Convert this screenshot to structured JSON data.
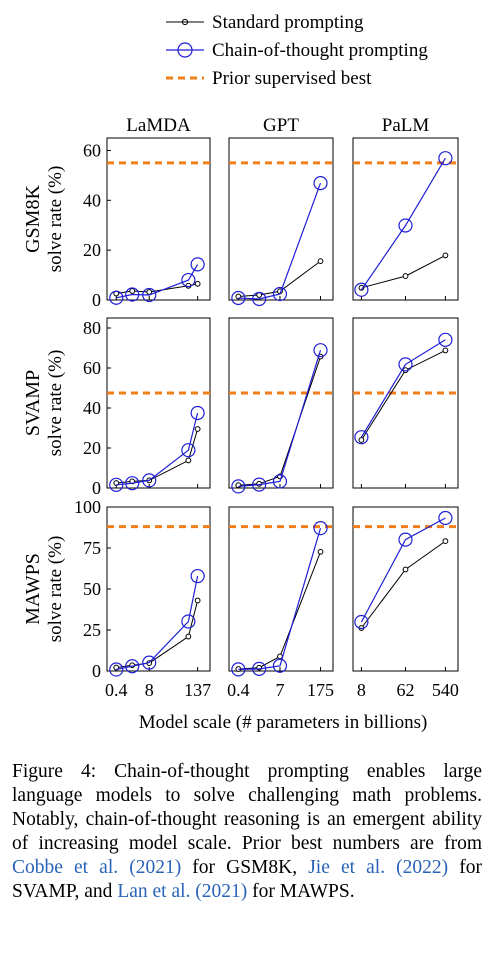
{
  "legend": [
    {
      "label": "Standard prompting",
      "color": "#000000",
      "style": "line-small-marker"
    },
    {
      "label": "Chain-of-thought prompting",
      "color": "#1f1fd6",
      "style": "line-large-marker"
    },
    {
      "label": "Prior supervised best",
      "color": "#f07f1a",
      "style": "dashed"
    }
  ],
  "xlabel": "Model scale (# parameters in billions)",
  "row_labels": [
    "GSM8K",
    "SVAMP",
    "MAWPS"
  ],
  "ylabel": "solve rate (%)",
  "column_titles": [
    "LaMDA",
    "GPT",
    "PaLM"
  ],
  "colors": {
    "standard": "#000000",
    "cot": "#1f1fd6",
    "prior": "#f07f1a"
  },
  "chart_data": [
    {
      "type": "line",
      "dataset": "GSM8K",
      "model": "LaMDA",
      "x": [
        "0.4",
        "2",
        "8",
        "68",
        "137"
      ],
      "xticks": [
        "0.4",
        "8",
        "137"
      ],
      "ylim": [
        0,
        65
      ],
      "yticks": [
        "0",
        "20",
        "40",
        "60"
      ],
      "series": [
        {
          "name": "Standard prompting",
          "values": [
            2.6,
            3.6,
            3.2,
            5.7,
            6.5
          ]
        },
        {
          "name": "Chain-of-thought prompting",
          "values": [
            0.9,
            2.2,
            2.0,
            8.0,
            14.3
          ]
        }
      ],
      "prior_best": 55
    },
    {
      "type": "line",
      "dataset": "GSM8K",
      "model": "GPT",
      "x": [
        "0.4",
        "1.3",
        "7",
        "175"
      ],
      "xticks": [
        "0.4",
        "7",
        "175"
      ],
      "ylim": [
        0,
        65
      ],
      "yticks": [],
      "series": [
        {
          "name": "Standard prompting",
          "values": [
            1.4,
            2.0,
            3.5,
            15.6
          ]
        },
        {
          "name": "Chain-of-thought prompting",
          "values": [
            0.8,
            0.4,
            2.4,
            46.9
          ]
        }
      ],
      "prior_best": 55
    },
    {
      "type": "line",
      "dataset": "GSM8K",
      "model": "PaLM",
      "x": [
        "8",
        "62",
        "540"
      ],
      "xticks": [
        "8",
        "62",
        "540"
      ],
      "ylim": [
        0,
        65
      ],
      "yticks": [],
      "series": [
        {
          "name": "Standard prompting",
          "values": [
            4.9,
            9.6,
            17.9
          ]
        },
        {
          "name": "Chain-of-thought prompting",
          "values": [
            4.1,
            29.9,
            56.9
          ]
        }
      ],
      "prior_best": 55
    },
    {
      "type": "line",
      "dataset": "SVAMP",
      "model": "LaMDA",
      "x": [
        "0.4",
        "2",
        "8",
        "68",
        "137"
      ],
      "xticks": [
        "0.4",
        "8",
        "137"
      ],
      "ylim": [
        0,
        85
      ],
      "yticks": [
        "0",
        "20",
        "40",
        "60",
        "80"
      ],
      "series": [
        {
          "name": "Standard prompting",
          "values": [
            2.5,
            3.3,
            3.8,
            13.8,
            29.5
          ]
        },
        {
          "name": "Chain-of-thought prompting",
          "values": [
            1.6,
            2.4,
            3.8,
            18.9,
            37.5
          ]
        }
      ],
      "prior_best": 47.5
    },
    {
      "type": "line",
      "dataset": "SVAMP",
      "model": "GPT",
      "x": [
        "0.4",
        "1.3",
        "7",
        "175"
      ],
      "xticks": [
        "0.4",
        "7",
        "175"
      ],
      "ylim": [
        0,
        85
      ],
      "yticks": [],
      "series": [
        {
          "name": "Standard prompting",
          "values": [
            1.4,
            2.1,
            5.8,
            65.7
          ]
        },
        {
          "name": "Chain-of-thought prompting",
          "values": [
            0.8,
            1.7,
            3.3,
            68.9
          ]
        }
      ],
      "prior_best": 47.5
    },
    {
      "type": "line",
      "dataset": "SVAMP",
      "model": "PaLM",
      "x": [
        "8",
        "62",
        "540"
      ],
      "xticks": [
        "8",
        "62",
        "540"
      ],
      "ylim": [
        0,
        85
      ],
      "yticks": [],
      "series": [
        {
          "name": "Standard prompting",
          "values": [
            24.0,
            58.9,
            68.8
          ]
        },
        {
          "name": "Chain-of-thought prompting",
          "values": [
            25.4,
            61.8,
            74.1
          ]
        }
      ],
      "prior_best": 47.5
    },
    {
      "type": "line",
      "dataset": "MAWPS",
      "model": "LaMDA",
      "x": [
        "0.4",
        "2",
        "8",
        "68",
        "137"
      ],
      "xticks": [
        "0.4",
        "8",
        "137"
      ],
      "ylim": [
        0,
        100
      ],
      "yticks": [
        "0",
        "25",
        "50",
        "75",
        "100"
      ],
      "series": [
        {
          "name": "Standard prompting",
          "values": [
            2.1,
            3.5,
            4.8,
            21.0,
            43.0
          ]
        },
        {
          "name": "Chain-of-thought prompting",
          "values": [
            0.9,
            2.9,
            5.1,
            30.2,
            57.9
          ]
        }
      ],
      "prior_best": 88
    },
    {
      "type": "line",
      "dataset": "MAWPS",
      "model": "GPT",
      "x": [
        "0.4",
        "1.3",
        "7",
        "175"
      ],
      "xticks": [
        "0.4",
        "7",
        "175"
      ],
      "ylim": [
        0,
        100
      ],
      "yticks": [],
      "series": [
        {
          "name": "Standard prompting",
          "values": [
            1.2,
            2.0,
            8.9,
            72.7
          ]
        },
        {
          "name": "Chain-of-thought prompting",
          "values": [
            1.0,
            1.3,
            3.2,
            87.1
          ]
        }
      ],
      "prior_best": 88
    },
    {
      "type": "line",
      "dataset": "MAWPS",
      "model": "PaLM",
      "x": [
        "8",
        "62",
        "540"
      ],
      "xticks": [
        "8",
        "62",
        "540"
      ],
      "ylim": [
        0,
        100
      ],
      "yticks": [],
      "series": [
        {
          "name": "Standard prompting",
          "values": [
            26.2,
            61.9,
            79.2
          ]
        },
        {
          "name": "Chain-of-thought prompting",
          "values": [
            29.9,
            80.1,
            93.3
          ]
        }
      ],
      "prior_best": 88
    }
  ],
  "caption": {
    "parts": [
      {
        "text": "Figure 4:   Chain-of-thought prompting enables large language models to solve challenging math problems.  Notably, chain-of-thought reasoning is an emergent ability of increasing model scale. Prior best numbers are from ",
        "cite": false
      },
      {
        "text": "Cobbe et al. (2021)",
        "cite": true
      },
      {
        "text": " for GSM8K, ",
        "cite": false
      },
      {
        "text": "Jie et al. (2022)",
        "cite": true
      },
      {
        "text": " for SVAMP, and ",
        "cite": false
      },
      {
        "text": "Lan et al. (2021)",
        "cite": true
      },
      {
        "text": " for MAWPS.",
        "cite": false
      }
    ]
  }
}
